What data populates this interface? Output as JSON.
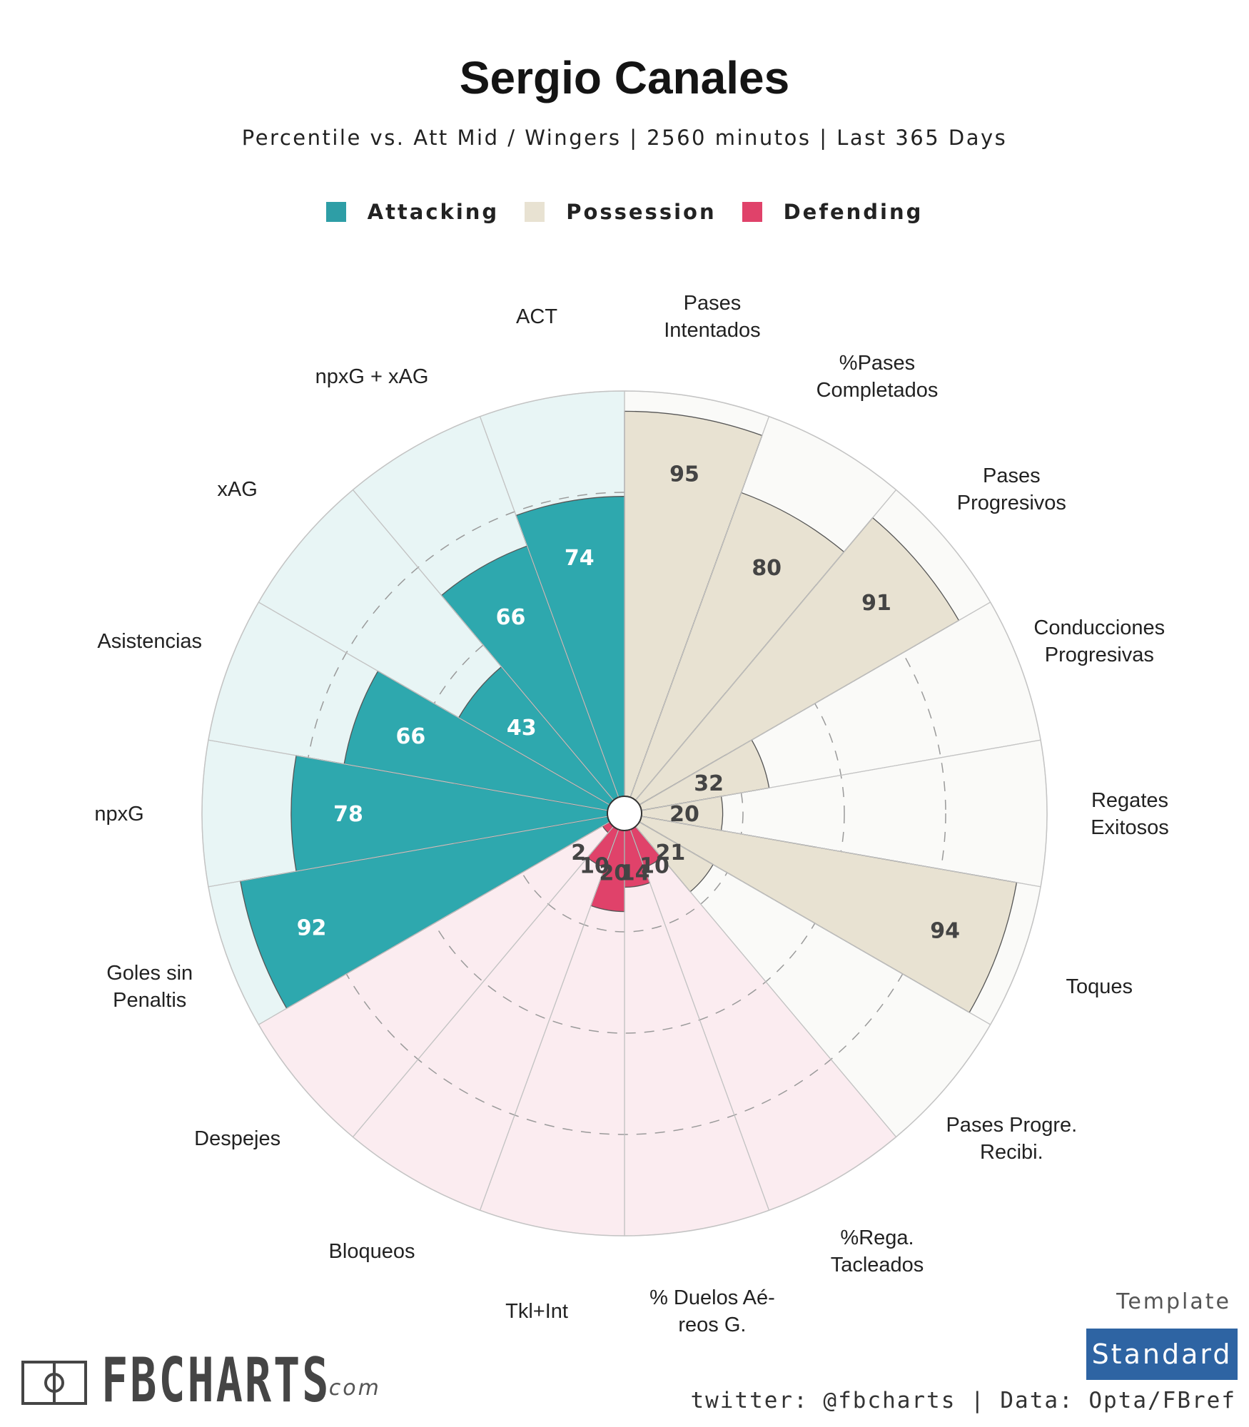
{
  "title": "Sergio Canales",
  "subtitle": "Percentile vs. Att Mid / Wingers | 2560 minutos | Last 365 Days",
  "legend": [
    {
      "label": "Attacking",
      "color": "#2ea8ae"
    },
    {
      "label": "Possession",
      "color": "#e8e2d2"
    },
    {
      "label": "Defending",
      "color": "#e0426a"
    }
  ],
  "colors": {
    "attacking": "#2ea8ae",
    "attacking_bg": "#e8f5f5",
    "possession": "#e8e2d2",
    "possession_bg": "#fafaf8",
    "defending": "#e0426a",
    "defending_bg": "#fbecf0"
  },
  "chart_data": {
    "type": "pizza",
    "title": "Sergio Canales",
    "rlim": [
      0,
      100
    ],
    "gridlines": [
      25,
      50,
      75
    ],
    "categories": [
      "Pases\nIntentados",
      "%Pases\nCompletados",
      "Pases\nProgresivos",
      "Conducciones\nProgresivas",
      "Regates\nExitosos",
      "Toques",
      "Pases Progre.\nRecibi.",
      "%Rega.\nTacleados",
      "% Duelos Aé-\nreos G.",
      "Tkl+Int",
      "Bloqueos",
      "Despejes",
      "Goles sin\nPenaltis",
      "npxG",
      "Asistencias",
      "xAG",
      "npxG + xAG",
      "ACT"
    ],
    "groups": [
      "possession",
      "possession",
      "possession",
      "possession",
      "possession",
      "possession",
      "possession",
      "defending",
      "defending",
      "defending",
      "defending",
      "defending",
      "attacking",
      "attacking",
      "attacking",
      "attacking",
      "attacking",
      "attacking"
    ],
    "values": [
      95,
      80,
      91,
      32,
      20,
      94,
      21,
      10,
      14,
      20,
      10,
      2,
      92,
      78,
      66,
      43,
      66,
      74
    ],
    "value_labels": [
      "95",
      "80",
      "91",
      "32",
      "20",
      "94",
      "21",
      "10",
      "14",
      "20",
      "10",
      "2",
      "92",
      "78",
      "66",
      "43",
      "66",
      "74"
    ]
  },
  "footer": {
    "template_label": "Template",
    "template_value": "Standard",
    "credit": "twitter: @fbcharts | Data: Opta/FBref",
    "logo_text": "FBCHARTS",
    "logo_suffix": ".com"
  }
}
